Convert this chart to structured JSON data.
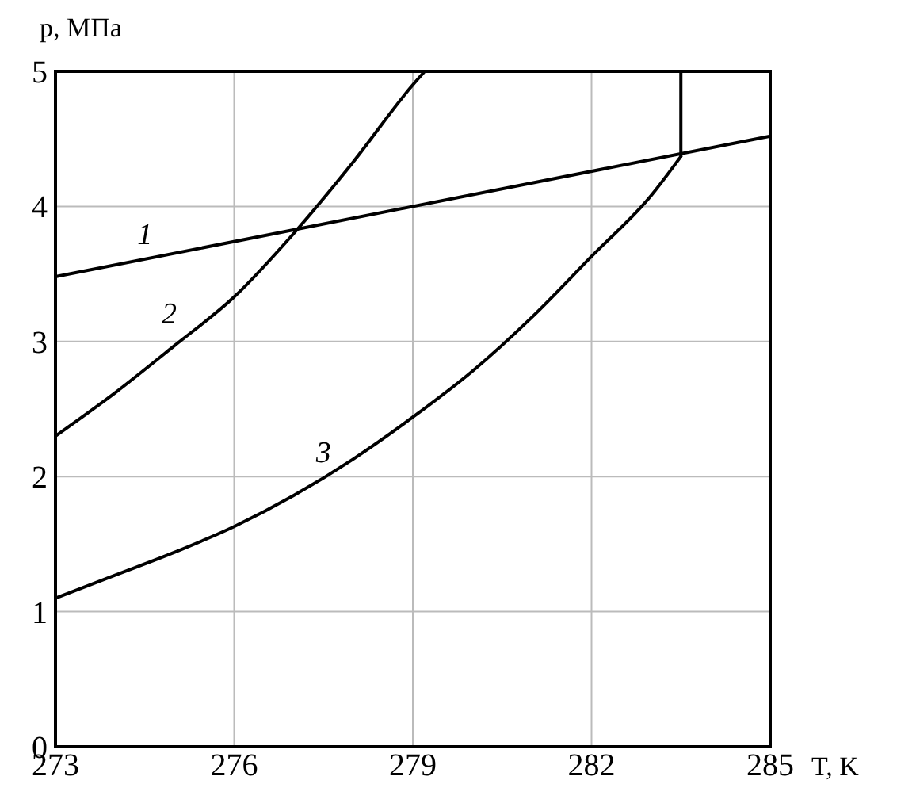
{
  "chart_data": {
    "type": "line",
    "xlabel": "T, K",
    "ylabel": "p, МПа",
    "xlim": [
      273,
      285
    ],
    "ylim": [
      0,
      5
    ],
    "xticks": [
      273,
      276,
      279,
      282,
      285
    ],
    "yticks": [
      0,
      1,
      2,
      3,
      4,
      5
    ],
    "grid": true,
    "line_style": "solid",
    "marker": "none",
    "series": [
      {
        "color": "#000000",
        "x": [
          273,
          285
        ],
        "values": [
          3.48,
          4.52
        ]
      },
      {
        "color": "#000000",
        "x": [
          273,
          274,
          275,
          276,
          277,
          278,
          279,
          279.2
        ],
        "values": [
          2.3,
          2.62,
          2.97,
          3.33,
          3.8,
          4.33,
          4.9,
          5
        ]
      },
      {
        "color": "#000000",
        "x": [
          273,
          274,
          275,
          276,
          277,
          278,
          279,
          280,
          281,
          282,
          283,
          283.5
        ],
        "values": [
          1.1,
          1.27,
          1.44,
          1.63,
          1.86,
          2.13,
          2.44,
          2.78,
          3.18,
          3.63,
          4.08,
          4.37
        ]
      },
      {
        "color": "#000000",
        "x": [
          283.5,
          283.5
        ],
        "values": [
          4.37,
          5
        ]
      }
    ],
    "annotations": [
      "1",
      "2",
      "3"
    ]
  }
}
